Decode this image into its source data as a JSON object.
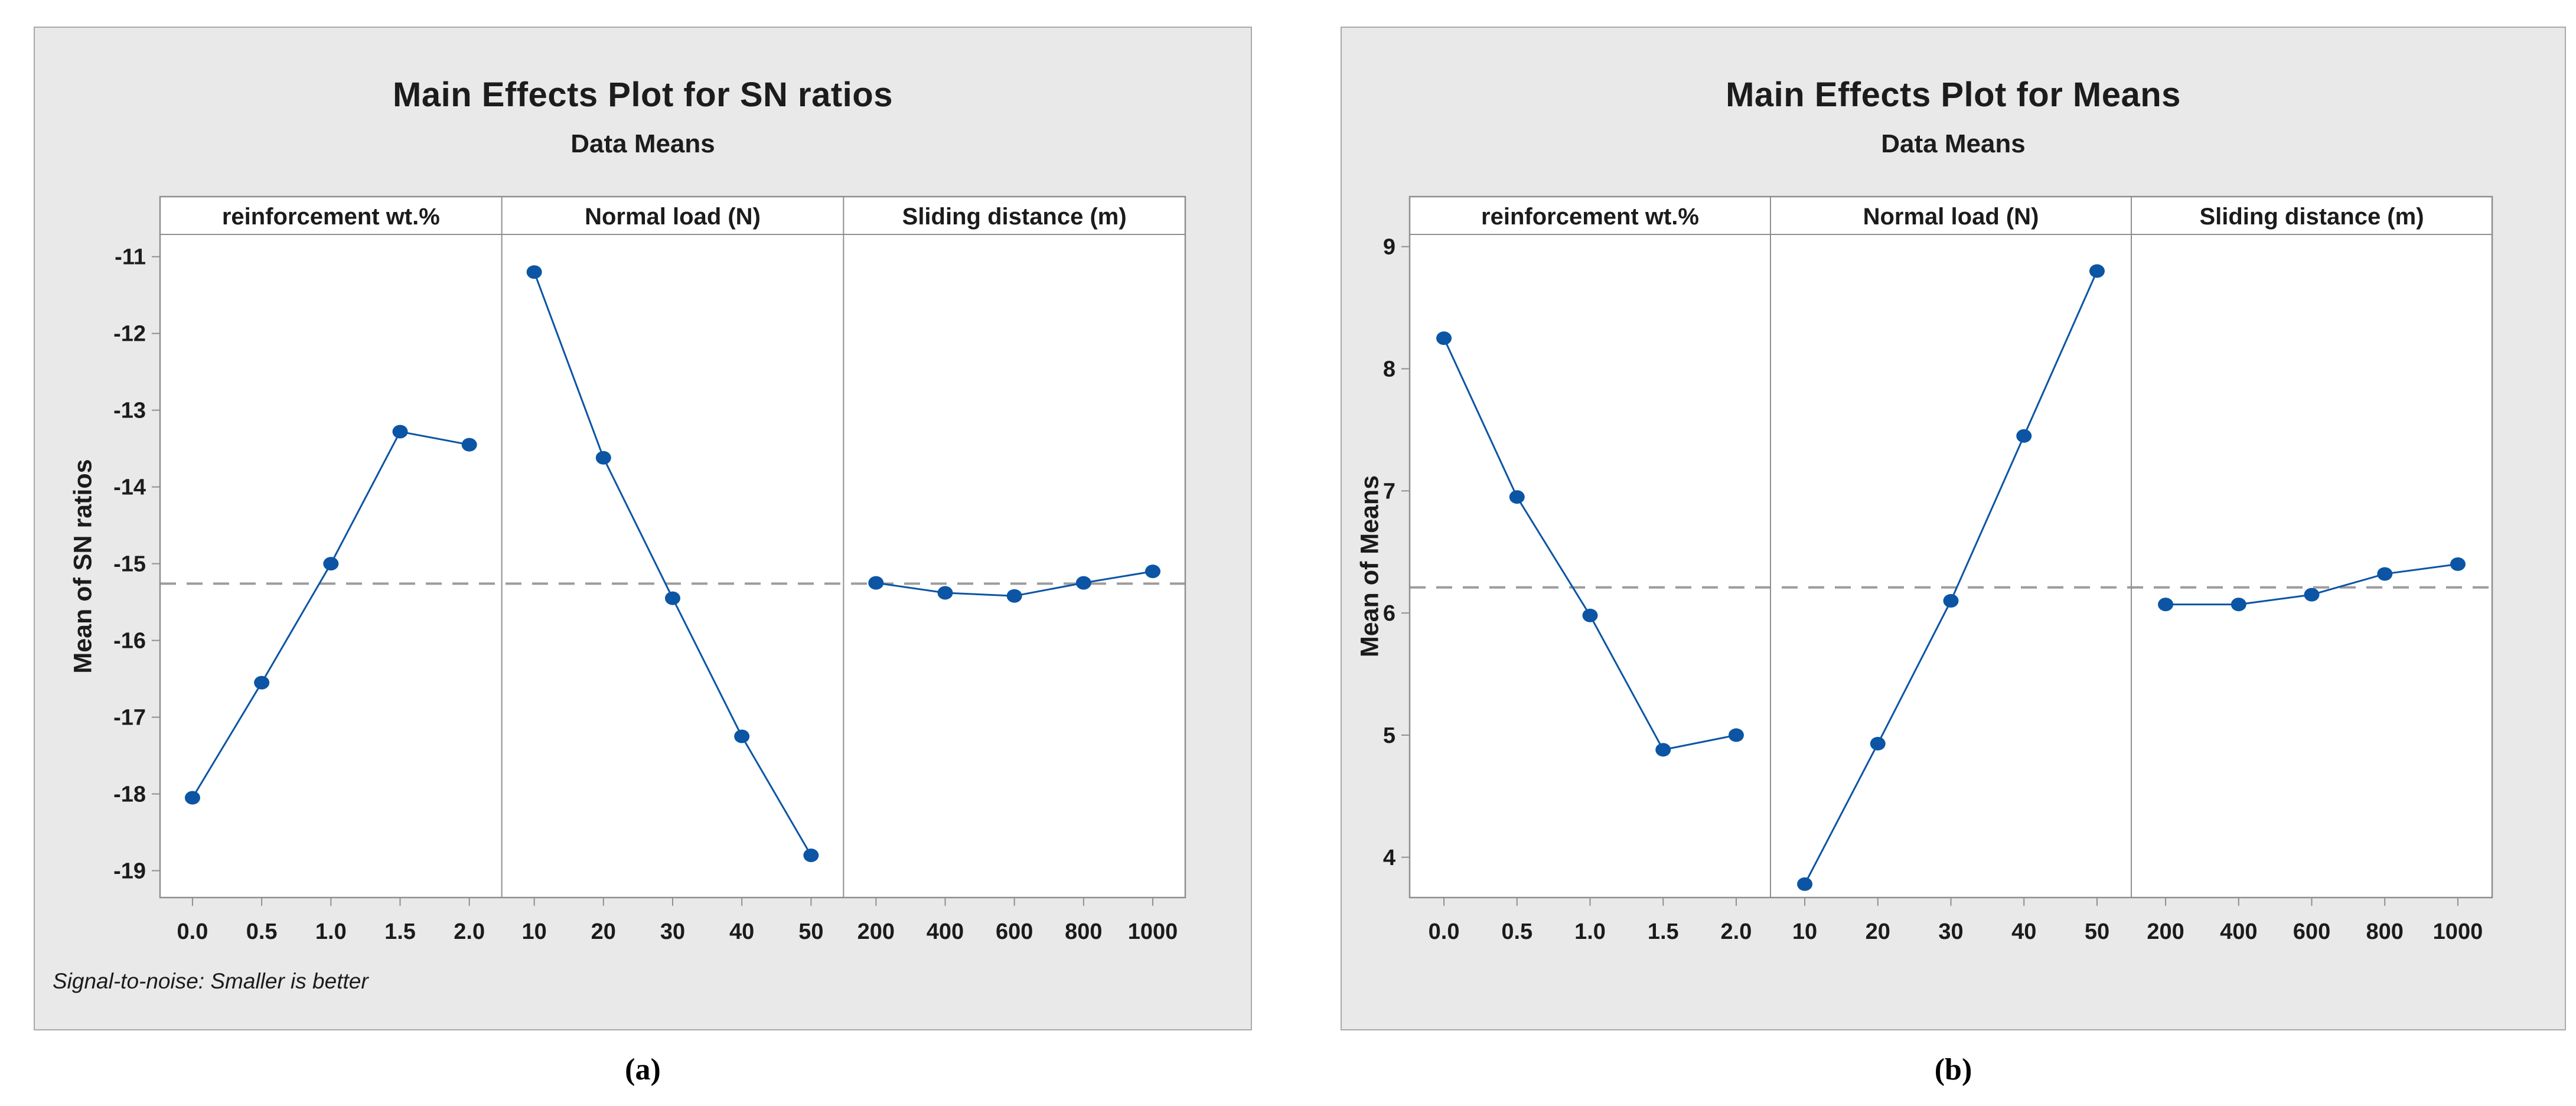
{
  "page": {
    "captions": {
      "a": "(a)",
      "b": "(b)"
    }
  },
  "colors": {
    "series_blue": "#0b55a4",
    "frame_gray": "#8f8f8f",
    "dashed_gray": "#9c9c9c",
    "figure_bg": "#e9e9e9",
    "plot_bg": "#ffffff",
    "text": "#1b1b1b"
  },
  "chart_data": [
    {
      "type": "line",
      "title": "Main Effects Plot for SN ratios",
      "subtitle": "Data Means",
      "ylabel": "Mean of SN ratios",
      "footnote": "Signal-to-noise: Smaller is better",
      "caption": "(a)",
      "legend": "none",
      "grid": "off",
      "yticks": [
        -11,
        -12,
        -13,
        -14,
        -15,
        -16,
        -17,
        -18,
        -19
      ],
      "ylim": [
        -10.71,
        -19.35
      ],
      "reference_mean": -15.26,
      "panels": [
        {
          "header": "reinforcement wt.%",
          "categories": [
            "0.0",
            "0.5",
            "1.0",
            "1.5",
            "2.0"
          ],
          "values": [
            -18.05,
            -16.55,
            -15.0,
            -13.28,
            -13.45
          ]
        },
        {
          "header": "Normal load (N)",
          "categories": [
            "10",
            "20",
            "30",
            "40",
            "50"
          ],
          "values": [
            -11.2,
            -13.62,
            -15.45,
            -17.25,
            -18.8
          ]
        },
        {
          "header": "Sliding distance (m)",
          "categories": [
            "200",
            "400",
            "600",
            "800",
            "1000"
          ],
          "values": [
            -15.25,
            -15.38,
            -15.42,
            -15.25,
            -15.1
          ]
        }
      ]
    },
    {
      "type": "line",
      "title": "Main Effects Plot for Means",
      "subtitle": "Data Means",
      "ylabel": "Mean of Means",
      "footnote": "",
      "caption": "(b)",
      "legend": "none",
      "grid": "off",
      "yticks": [
        9,
        8,
        7,
        6,
        5,
        4
      ],
      "ylim": [
        9.1,
        3.67
      ],
      "reference_mean": 6.21,
      "panels": [
        {
          "header": "reinforcement wt.%",
          "categories": [
            "0.0",
            "0.5",
            "1.0",
            "1.5",
            "2.0"
          ],
          "values": [
            8.25,
            6.95,
            5.98,
            4.88,
            5.0
          ]
        },
        {
          "header": "Normal load (N)",
          "categories": [
            "10",
            "20",
            "30",
            "40",
            "50"
          ],
          "values": [
            3.78,
            4.93,
            6.1,
            7.45,
            8.8
          ]
        },
        {
          "header": "Sliding distance (m)",
          "categories": [
            "200",
            "400",
            "600",
            "800",
            "1000"
          ],
          "values": [
            6.07,
            6.07,
            6.15,
            6.32,
            6.4
          ]
        }
      ]
    }
  ]
}
